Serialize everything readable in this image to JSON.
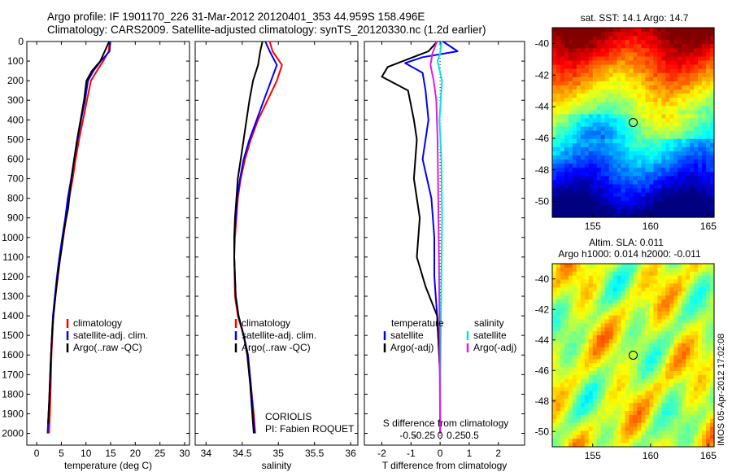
{
  "header": {
    "line1": "Argo profile: IF 1901170_226 31-Mar-2012 20120401_353 44.959S 158.496E",
    "line2": "Climatology: CARS2009. Satellite-adjusted climatology: synTS_20120330.nc (1.2d earlier)"
  },
  "stamp": "IMOS 05-Apr-2012 17:02:08",
  "colors": {
    "climatology": "#ff0000",
    "satellite": "#0000ff",
    "argo": "#000000",
    "sal_satellite": "#00e5e5",
    "sal_argo": "#e619e6"
  },
  "chart_data": [
    {
      "type": "line",
      "name": "temperature",
      "xlabel": "temperature (deg C)",
      "xlim": [
        -2,
        31
      ],
      "ylim": [
        0,
        2060
      ],
      "y_reversed": true,
      "xticks": [
        0,
        5,
        10,
        15,
        20,
        25,
        30
      ],
      "yticks": [
        0,
        100,
        200,
        300,
        400,
        500,
        600,
        700,
        800,
        900,
        1000,
        1100,
        1200,
        1300,
        1400,
        1500,
        1600,
        1700,
        1800,
        1900,
        2000
      ],
      "legend": [
        "climatology",
        "satellite-adj. clim.",
        "Argo(..raw -QC)"
      ],
      "legend_colors": [
        "#ff0000",
        "#0000ff",
        "#000000"
      ],
      "series": [
        {
          "name": "climatology",
          "color": "#ff0000",
          "x": [
            14.8,
            14.6,
            13.5,
            12.2,
            11.0,
            10.2,
            9.4,
            8.6,
            7.9,
            7.3,
            6.6,
            6.0,
            5.4,
            4.8,
            4.3,
            3.8,
            3.4,
            3.0,
            2.8,
            2.6,
            2.5
          ],
          "y": [
            0,
            50,
            100,
            150,
            200,
            300,
            400,
            500,
            600,
            700,
            800,
            900,
            1000,
            1100,
            1200,
            1300,
            1400,
            1600,
            1800,
            1950,
            2000
          ]
        },
        {
          "name": "satellite",
          "color": "#0000ff",
          "x": [
            14.9,
            14.8,
            13.0,
            11.5,
            10.4,
            9.8,
            9.0,
            8.3,
            7.6,
            7.0,
            6.3,
            5.8,
            5.2,
            4.6,
            4.1,
            3.7,
            3.3,
            2.9,
            2.6,
            2.3,
            2.2
          ],
          "y": [
            0,
            50,
            100,
            150,
            200,
            300,
            400,
            500,
            600,
            700,
            800,
            900,
            1000,
            1100,
            1200,
            1300,
            1400,
            1600,
            1800,
            1950,
            2000
          ]
        },
        {
          "name": "argo",
          "color": "#000000",
          "x": [
            14.7,
            13.8,
            12.9,
            11.2,
            10.1,
            9.6,
            8.9,
            8.2,
            7.6,
            6.8,
            6.4,
            5.6,
            5.1,
            4.5,
            4.0,
            3.6,
            3.2,
            2.8,
            2.5,
            2.3
          ],
          "y": [
            0,
            50,
            100,
            150,
            200,
            300,
            400,
            500,
            600,
            750,
            850,
            950,
            1050,
            1150,
            1250,
            1350,
            1450,
            1650,
            1850,
            1950
          ]
        }
      ]
    },
    {
      "type": "line",
      "name": "salinity",
      "xlabel": "salinity",
      "xlim": [
        33.85,
        36.1
      ],
      "ylim": [
        0,
        2060
      ],
      "y_reversed": true,
      "xticks": [
        34,
        34.5,
        35,
        35.5,
        36
      ],
      "xticklabels": [
        "34",
        "34.5",
        "35",
        "35.5",
        "36"
      ],
      "legend": [
        "climatology",
        "satellite-adj. clim.",
        "Argo(..raw -QC)"
      ],
      "legend_colors": [
        "#ff0000",
        "#0000ff",
        "#000000"
      ],
      "annotation": [
        "CORIOLIS",
        "PI: Fabien ROQUET"
      ],
      "series": [
        {
          "name": "climatology",
          "color": "#ff0000",
          "x": [
            34.88,
            34.92,
            35.05,
            34.98,
            34.85,
            34.72,
            34.62,
            34.54,
            34.48,
            34.44,
            34.42,
            34.4,
            34.39,
            34.4,
            34.44,
            34.52,
            34.58,
            34.62,
            34.66,
            34.68
          ],
          "y": [
            0,
            50,
            120,
            200,
            300,
            400,
            500,
            600,
            700,
            800,
            900,
            1000,
            1100,
            1300,
            1400,
            1500,
            1600,
            1750,
            1900,
            2000
          ]
        },
        {
          "name": "satellite",
          "color": "#0000ff",
          "x": [
            34.82,
            34.88,
            34.98,
            34.9,
            34.8,
            34.7,
            34.6,
            34.52,
            34.47,
            34.43,
            34.41,
            34.39,
            34.39,
            34.41,
            34.45,
            34.52,
            34.58,
            34.62,
            34.65,
            34.67
          ],
          "y": [
            0,
            50,
            120,
            200,
            300,
            400,
            500,
            600,
            700,
            800,
            900,
            1000,
            1100,
            1300,
            1400,
            1500,
            1600,
            1750,
            1900,
            2000
          ]
        },
        {
          "name": "argo",
          "color": "#000000",
          "x": [
            34.78,
            34.75,
            34.72,
            34.65,
            34.6,
            34.56,
            34.52,
            34.48,
            34.44,
            34.42,
            34.4,
            34.39,
            34.39,
            34.41,
            34.45,
            34.52,
            34.57,
            34.61,
            34.64,
            34.66
          ],
          "y": [
            0,
            50,
            120,
            200,
            300,
            400,
            500,
            600,
            700,
            800,
            900,
            1000,
            1100,
            1300,
            1400,
            1500,
            1600,
            1750,
            1900,
            2000
          ]
        }
      ]
    },
    {
      "type": "line",
      "name": "difference",
      "xlabel": "T difference from climatology",
      "xlabel2": "S difference from climatology",
      "xlim": [
        -2.6,
        2.9
      ],
      "ylim": [
        0,
        2060
      ],
      "y_reversed": true,
      "xticks": [
        -2,
        -1,
        0,
        1,
        2
      ],
      "s_xticks": [
        -0.5,
        -0.25,
        0,
        0.25,
        0.5
      ],
      "s_xticklabels": [
        "-0.5",
        "-0.25",
        "0",
        "0.25",
        "0.5"
      ],
      "legend_temperature_title": "temperature",
      "legend_salinity_title": "salinity",
      "legend_temperature": [
        "satellite",
        "Argo(-adj)"
      ],
      "legend_salinity": [
        "satellite",
        "Argo(-adj)"
      ],
      "series": [
        {
          "name": "T satellite",
          "color": "#0000ff",
          "x": [
            0.1,
            0.6,
            -0.6,
            -1.2,
            -0.6,
            -0.5,
            -0.4,
            -0.6,
            -0.3,
            -0.2,
            -0.2,
            -0.1,
            0.0,
            0.0
          ],
          "y": [
            0,
            50,
            80,
            110,
            160,
            250,
            400,
            600,
            800,
            1000,
            1200,
            1400,
            1700,
            2000
          ]
        },
        {
          "name": "T argo",
          "color": "#000000",
          "x": [
            -0.1,
            -0.4,
            -1.8,
            -2.0,
            -1.1,
            -0.9,
            -0.8,
            -0.9,
            -0.7,
            -0.8,
            -0.5,
            -0.1,
            0.0,
            0.0
          ],
          "y": [
            0,
            50,
            130,
            180,
            250,
            400,
            500,
            700,
            900,
            1100,
            1250,
            1400,
            1700,
            2000
          ]
        },
        {
          "name": "S satellite",
          "color": "#00e5e5",
          "x": [
            0.02,
            0.0,
            -0.04,
            0.03,
            -0.01,
            0.02,
            0.03,
            0.02,
            0.01,
            0.0,
            0.0
          ],
          "y": [
            0,
            60,
            100,
            200,
            400,
            600,
            900,
            1200,
            1500,
            1800,
            2000
          ]
        },
        {
          "name": "S argo",
          "color": "#e619e6",
          "x": [
            -0.05,
            -0.12,
            -0.15,
            -0.1,
            -0.06,
            -0.04,
            -0.03,
            -0.02,
            -0.01,
            0.0
          ],
          "y": [
            0,
            60,
            120,
            200,
            300,
            500,
            800,
            1100,
            1400,
            2000
          ]
        }
      ]
    },
    {
      "type": "heatmap",
      "name": "sst_map",
      "title": "sat. SST: 14.1  Argo: 14.7",
      "xlim": [
        151.5,
        165.5
      ],
      "ylim": [
        -51,
        -39
      ],
      "xticks": [
        155,
        160,
        165
      ],
      "yticks": [
        -40,
        -42,
        -44,
        -46,
        -48,
        -50
      ],
      "marker": {
        "lon": 158.5,
        "lat": -45.0
      }
    },
    {
      "type": "heatmap",
      "name": "sla_map",
      "title": "Altim. SLA: 0.011",
      "subtitle": "Argo h1000: 0.014 h2000: -0.011",
      "xlim": [
        151.5,
        165.5
      ],
      "ylim": [
        -51,
        -39
      ],
      "xticks": [
        155,
        160,
        165
      ],
      "yticks": [
        -40,
        -42,
        -44,
        -46,
        -48,
        -50
      ],
      "marker": {
        "lon": 158.5,
        "lat": -45.0
      }
    }
  ]
}
